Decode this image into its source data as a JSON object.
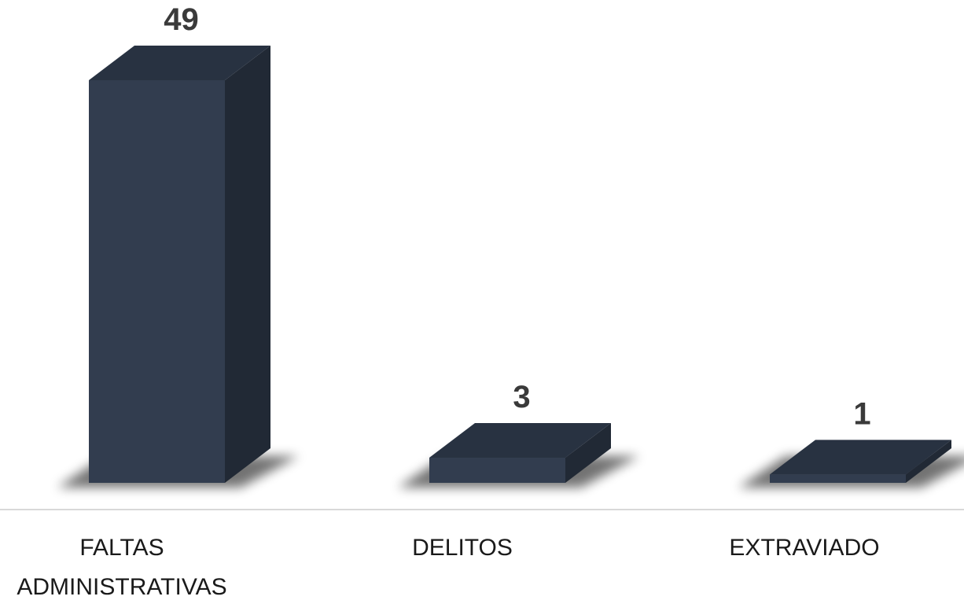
{
  "chart_data": {
    "type": "bar",
    "style": "3d-column",
    "categories": [
      [
        "FALTAS",
        "ADMINISTRATIVAS"
      ],
      [
        "DELITOS"
      ],
      [
        "EXTRAVIADO"
      ]
    ],
    "values": [
      49,
      3,
      1
    ],
    "value_labels": [
      "49",
      "3",
      "1"
    ],
    "ylim": [
      0,
      49
    ],
    "grid": false,
    "legend": "none",
    "colors": {
      "bar_front": "#323d4f",
      "bar_top": "#283241",
      "bar_side": "#212935",
      "shadow": "#000000",
      "baseline": "#d9d9d9",
      "value_text": "#3a3a3a",
      "category_text": "#1a1a1a"
    }
  }
}
